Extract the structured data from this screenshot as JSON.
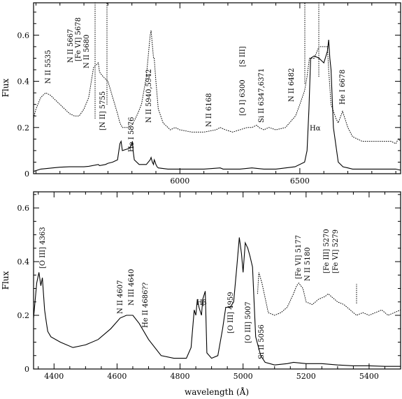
{
  "chart_data": [
    {
      "type": "line",
      "panel": "top",
      "xlim": [
        5390,
        6920
      ],
      "ylim": [
        0,
        0.74
      ],
      "ylabel": "Flux",
      "xlabel": "",
      "xticks_labeled": [
        6000,
        6500
      ],
      "xticks_minor_step": 100,
      "yticks": [
        0,
        0.2,
        0.4,
        0.6
      ],
      "grid": false,
      "series": [
        {
          "style": "solid",
          "x": [
            5390,
            5420,
            5470,
            5500,
            5540,
            5580,
            5600,
            5620,
            5660,
            5665,
            5690,
            5700,
            5720,
            5740,
            5750,
            5755,
            5760,
            5790,
            5800,
            5802,
            5805,
            5810,
            5830,
            5860,
            5876,
            5880,
            5885,
            5890,
            5893,
            5897,
            5900,
            5905,
            5910,
            5950,
            6000,
            6100,
            6168,
            6180,
            6250,
            6300,
            6350,
            6400,
            6480,
            6520,
            6530,
            6538,
            6545,
            6560,
            6580,
            6600,
            6615,
            6620,
            6625,
            6630,
            6640,
            6660,
            6680,
            6700,
            6720,
            6750,
            6800,
            6850,
            6900,
            6920
          ],
          "y": [
            0.01,
            0.02,
            0.025,
            0.028,
            0.03,
            0.03,
            0.03,
            0.032,
            0.04,
            0.035,
            0.04,
            0.045,
            0.05,
            0.06,
            0.13,
            0.14,
            0.1,
            0.11,
            0.13,
            0.14,
            0.1,
            0.06,
            0.04,
            0.04,
            0.06,
            0.07,
            0.05,
            0.04,
            0.06,
            0.05,
            0.04,
            0.03,
            0.025,
            0.02,
            0.02,
            0.02,
            0.025,
            0.02,
            0.02,
            0.025,
            0.02,
            0.02,
            0.03,
            0.05,
            0.1,
            0.28,
            0.5,
            0.51,
            0.5,
            0.48,
            0.53,
            0.58,
            0.5,
            0.45,
            0.2,
            0.05,
            0.03,
            0.025,
            0.02,
            0.02,
            0.02,
            0.02,
            0.02,
            0.015
          ]
        },
        {
          "style": "dotted",
          "x": [
            5390,
            5400,
            5420,
            5440,
            5460,
            5480,
            5500,
            5520,
            5540,
            5560,
            5580,
            5600,
            5620,
            5640,
            5660,
            5665,
            5680,
            5700,
            5720,
            5740,
            5750,
            5760,
            5780,
            5800,
            5820,
            5840,
            5860,
            5876,
            5880,
            5890,
            5893,
            5900,
            5910,
            5930,
            5950,
            5960,
            5980,
            6000,
            6050,
            6100,
            6150,
            6168,
            6190,
            6220,
            6250,
            6280,
            6300,
            6320,
            6330,
            6350,
            6371,
            6400,
            6440,
            6482,
            6500,
            6520,
            6530,
            6540,
            6560,
            6580,
            6600,
            6615,
            6620,
            6630,
            6650,
            6660,
            6678,
            6700,
            6720,
            6740,
            6760,
            6800,
            6840,
            6880,
            6900,
            6910,
            6920
          ],
          "y": [
            0.24,
            0.28,
            0.33,
            0.35,
            0.34,
            0.32,
            0.3,
            0.28,
            0.26,
            0.25,
            0.25,
            0.28,
            0.33,
            0.46,
            0.48,
            0.44,
            0.42,
            0.4,
            0.33,
            0.26,
            0.22,
            0.2,
            0.2,
            0.21,
            0.25,
            0.3,
            0.42,
            0.6,
            0.62,
            0.5,
            0.5,
            0.4,
            0.28,
            0.22,
            0.2,
            0.19,
            0.2,
            0.19,
            0.18,
            0.18,
            0.19,
            0.2,
            0.19,
            0.18,
            0.19,
            0.2,
            0.2,
            0.21,
            0.2,
            0.19,
            0.2,
            0.19,
            0.2,
            0.25,
            0.3,
            0.36,
            0.42,
            0.5,
            0.5,
            0.55,
            0.55,
            0.55,
            0.45,
            0.3,
            0.24,
            0.22,
            0.27,
            0.2,
            0.16,
            0.15,
            0.14,
            0.14,
            0.14,
            0.14,
            0.13,
            0.15,
            0.14
          ]
        }
      ],
      "annotations": [
        "N II 5535",
        "N II 5667",
        "[Fe VI] 5678",
        "N II 5680",
        "[N II] 5755",
        "He I 5876",
        "N II 5940,5942",
        "N II 6168",
        "[O I] 6300",
        "[S III]",
        "Si II 6347,6371",
        "N II 6482",
        "Hα",
        "He I 6678"
      ]
    },
    {
      "type": "line",
      "panel": "bottom",
      "xlim": [
        4335,
        5500
      ],
      "ylim": [
        0,
        0.66
      ],
      "ylabel": "Flux",
      "xlabel": "wavelength (Å)",
      "xticks_labeled": [
        4400,
        4600,
        4800,
        5000,
        5200,
        5400
      ],
      "xticks_minor_step": 50,
      "yticks": [
        0,
        0.2,
        0.4,
        0.6
      ],
      "grid": false,
      "series": [
        {
          "style": "solid",
          "x": [
            4335,
            4345,
            4352,
            4358,
            4363,
            4370,
            4376,
            4380,
            4390,
            4420,
            4460,
            4500,
            4540,
            4580,
            4610,
            4630,
            4650,
            4670,
            4700,
            4740,
            4780,
            4820,
            4835,
            4845,
            4850,
            4855,
            4860,
            4868,
            4872,
            4880,
            4885,
            4900,
            4920,
            4935,
            4945,
            4959,
            4970,
            4980,
            4988,
            4995,
            5000,
            5007,
            5015,
            5022,
            5030,
            5040,
            5056,
            5070,
            5100,
            5140,
            5160,
            5200,
            5250,
            5300,
            5350,
            5400,
            5450,
            5500
          ],
          "y": [
            0.19,
            0.32,
            0.36,
            0.31,
            0.34,
            0.22,
            0.17,
            0.14,
            0.12,
            0.1,
            0.08,
            0.09,
            0.11,
            0.15,
            0.19,
            0.2,
            0.2,
            0.17,
            0.11,
            0.05,
            0.04,
            0.04,
            0.08,
            0.22,
            0.2,
            0.26,
            0.23,
            0.2,
            0.26,
            0.29,
            0.06,
            0.04,
            0.05,
            0.15,
            0.23,
            0.23,
            0.25,
            0.38,
            0.49,
            0.43,
            0.36,
            0.47,
            0.45,
            0.42,
            0.38,
            0.12,
            0.05,
            0.025,
            0.015,
            0.02,
            0.025,
            0.02,
            0.02,
            0.015,
            0.012,
            0.012,
            0.01,
            0.01
          ]
        },
        {
          "style": "dotted",
          "x": [
            5046,
            5050,
            5060,
            5080,
            5100,
            5120,
            5140,
            5160,
            5170,
            5177,
            5190,
            5200,
            5220,
            5240,
            5260,
            5270,
            5280,
            5300,
            5320,
            5340,
            5360,
            5380,
            5400,
            5420,
            5440,
            5460,
            5480,
            5500
          ],
          "y": [
            0.28,
            0.36,
            0.32,
            0.21,
            0.2,
            0.21,
            0.23,
            0.28,
            0.31,
            0.32,
            0.3,
            0.25,
            0.24,
            0.26,
            0.27,
            0.28,
            0.27,
            0.25,
            0.24,
            0.22,
            0.2,
            0.21,
            0.2,
            0.21,
            0.22,
            0.2,
            0.21,
            0.22
          ]
        }
      ],
      "annotations": [
        "[O III] 4363",
        "N II 4607",
        "N III 4640",
        "He II 4686??",
        "Hβ",
        "[O III] 4959",
        "[O III] 5007",
        "Si II 5056",
        "[Fe VI] 5177",
        "N II 5180",
        "[Fe III] 5270",
        "[Fe VI] 5279"
      ]
    }
  ]
}
